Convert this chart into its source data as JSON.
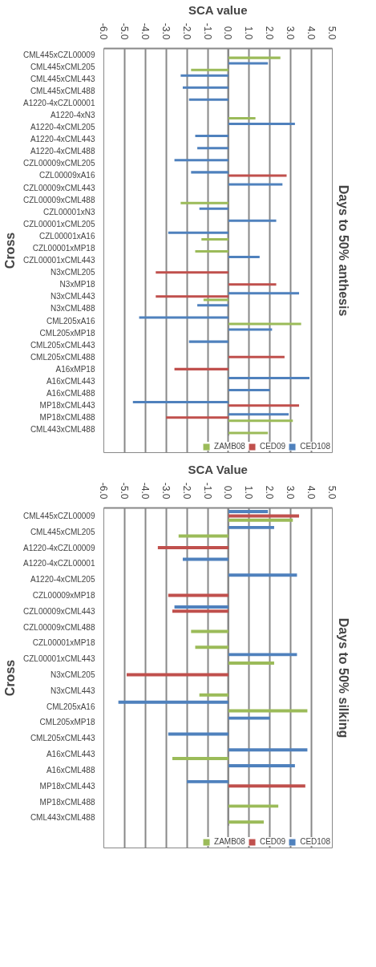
{
  "chart_data": [
    {
      "type": "bar",
      "orientation": "horizontal",
      "title": "Days to 50% anthesis",
      "xlabel": "SCA value",
      "ylabel": "Cross",
      "grid": "x",
      "legend": "bottom right",
      "xlim": [
        -6,
        5
      ],
      "xticks": [
        {
          "value": -6,
          "label": "-6.0"
        },
        {
          "value": -5,
          "label": "-5.0"
        },
        {
          "value": -4,
          "label": "-4.0"
        },
        {
          "value": -3,
          "label": "-3.0"
        },
        {
          "value": -2,
          "label": "-2.0"
        },
        {
          "value": -1,
          "label": "-1.0"
        },
        {
          "value": 0,
          "label": "0.0"
        },
        {
          "value": 1,
          "label": "1.0"
        },
        {
          "value": 2,
          "label": "2.0"
        },
        {
          "value": 3,
          "label": "3.0"
        },
        {
          "value": 4,
          "label": "4.0"
        },
        {
          "value": 5,
          "label": "5.0"
        }
      ],
      "categories": [
        "CML445xCZL00009",
        "CML445xCML205",
        "CML445xCML443",
        "CML445xCML488",
        "A1220-4xCZL00001",
        "A1220-4xN3",
        "A1220-4xCML205",
        "A1220-4xCML443",
        "A1220-4xCML488",
        "CZL00009xCML205",
        "CZL00009xA16",
        "CZL00009xCML443",
        "CZL00009xCML488",
        "CZL00001xN3",
        "CZL00001xCML205",
        "CZL00001xA16",
        "CZL00001xMP18",
        "CZL00001xCML443",
        "N3xCML205",
        "N3xMP18",
        "N3xCML443",
        "N3xCML488",
        "CML205xA16",
        "CML205xMP18",
        "CML205xCML443",
        "CML205xCML488",
        "A16xMP18",
        "A16xCML443",
        "A16xCML488",
        "MP18xCML443",
        "MP18xCML488",
        "CML443xCML488"
      ],
      "series": [
        {
          "name": "CED108",
          "color": "#4f81bd",
          "values": [
            null,
            1.9,
            -2.3,
            -2.2,
            -1.9,
            null,
            3.2,
            -1.6,
            -1.5,
            -2.6,
            -1.8,
            2.6,
            null,
            -1.4,
            2.3,
            -2.9,
            null,
            1.5,
            null,
            null,
            3.4,
            -1.5,
            -4.3,
            2.1,
            -1.9,
            null,
            null,
            3.9,
            2.0,
            -4.6,
            2.9,
            null
          ]
        },
        {
          "name": "CED09",
          "color": "#c0504d",
          "values": [
            null,
            null,
            null,
            null,
            null,
            null,
            null,
            null,
            null,
            null,
            2.8,
            null,
            null,
            null,
            null,
            null,
            null,
            null,
            -3.5,
            2.3,
            -3.5,
            null,
            null,
            null,
            null,
            2.7,
            -2.6,
            null,
            null,
            3.4,
            -3.0,
            null
          ]
        },
        {
          "name": "ZAMB08",
          "color": "#9bbb59",
          "values": [
            2.5,
            -1.8,
            null,
            null,
            null,
            1.3,
            null,
            null,
            null,
            null,
            null,
            null,
            -2.3,
            null,
            null,
            -1.3,
            -1.6,
            null,
            null,
            null,
            -1.2,
            null,
            3.5,
            null,
            null,
            null,
            null,
            null,
            null,
            null,
            3.1,
            1.9
          ]
        }
      ]
    },
    {
      "type": "bar",
      "orientation": "horizontal",
      "title": "Days to 50% silking",
      "xlabel": "SCA Value",
      "ylabel": "Cross",
      "grid": "x",
      "legend": "bottom right",
      "xlim": [
        -6,
        5
      ],
      "xticks": [
        {
          "value": -6,
          "label": "-6.0"
        },
        {
          "value": -5,
          "label": "-5.0"
        },
        {
          "value": -4,
          "label": "-4.0"
        },
        {
          "value": -3,
          "label": "-3.0"
        },
        {
          "value": -2,
          "label": "-2.0"
        },
        {
          "value": -1,
          "label": "-1.0"
        },
        {
          "value": 0,
          "label": "0.0"
        },
        {
          "value": 1,
          "label": "1.0"
        },
        {
          "value": 2,
          "label": "2.0"
        },
        {
          "value": 3,
          "label": "3.0"
        },
        {
          "value": 4,
          "label": "4.0"
        },
        {
          "value": 5,
          "label": "5.0"
        }
      ],
      "categories": [
        "CML445xCZL00009",
        "CML445xCML205",
        "A1220-4xCZL00009",
        "A1220-4xCZL00001",
        "A1220-4xCML205",
        "CZL00009xMP18",
        "CZL00009xCML443",
        "CZL00009xCML488",
        "CZL00001xMP18",
        "CZL00001xCML443",
        "N3xCML205",
        "N3xCML443",
        "CML205xA16",
        "CML205xMP18",
        "CML205xCML443",
        "A16xCML443",
        "A16xCML488",
        "MP18xCML443",
        "MP18xCML488",
        "CML443xCML488"
      ],
      "series": [
        {
          "name": "CED108",
          "color": "#4f81bd",
          "values": [
            1.9,
            2.2,
            null,
            -2.2,
            3.3,
            null,
            -2.6,
            null,
            null,
            3.3,
            null,
            null,
            -5.3,
            2.0,
            -2.9,
            3.8,
            3.2,
            -2.0,
            null,
            null
          ]
        },
        {
          "name": "CED09",
          "color": "#c0504d",
          "values": [
            3.4,
            null,
            -3.4,
            null,
            null,
            -2.9,
            -2.7,
            null,
            null,
            null,
            -4.9,
            null,
            null,
            null,
            null,
            null,
            null,
            3.7,
            null,
            null
          ]
        },
        {
          "name": "ZAMB08",
          "color": "#9bbb59",
          "values": [
            3.1,
            -2.4,
            null,
            null,
            null,
            null,
            null,
            -1.8,
            -1.6,
            2.2,
            null,
            -1.4,
            3.8,
            null,
            null,
            -2.7,
            null,
            null,
            2.4,
            1.7
          ]
        }
      ]
    }
  ]
}
